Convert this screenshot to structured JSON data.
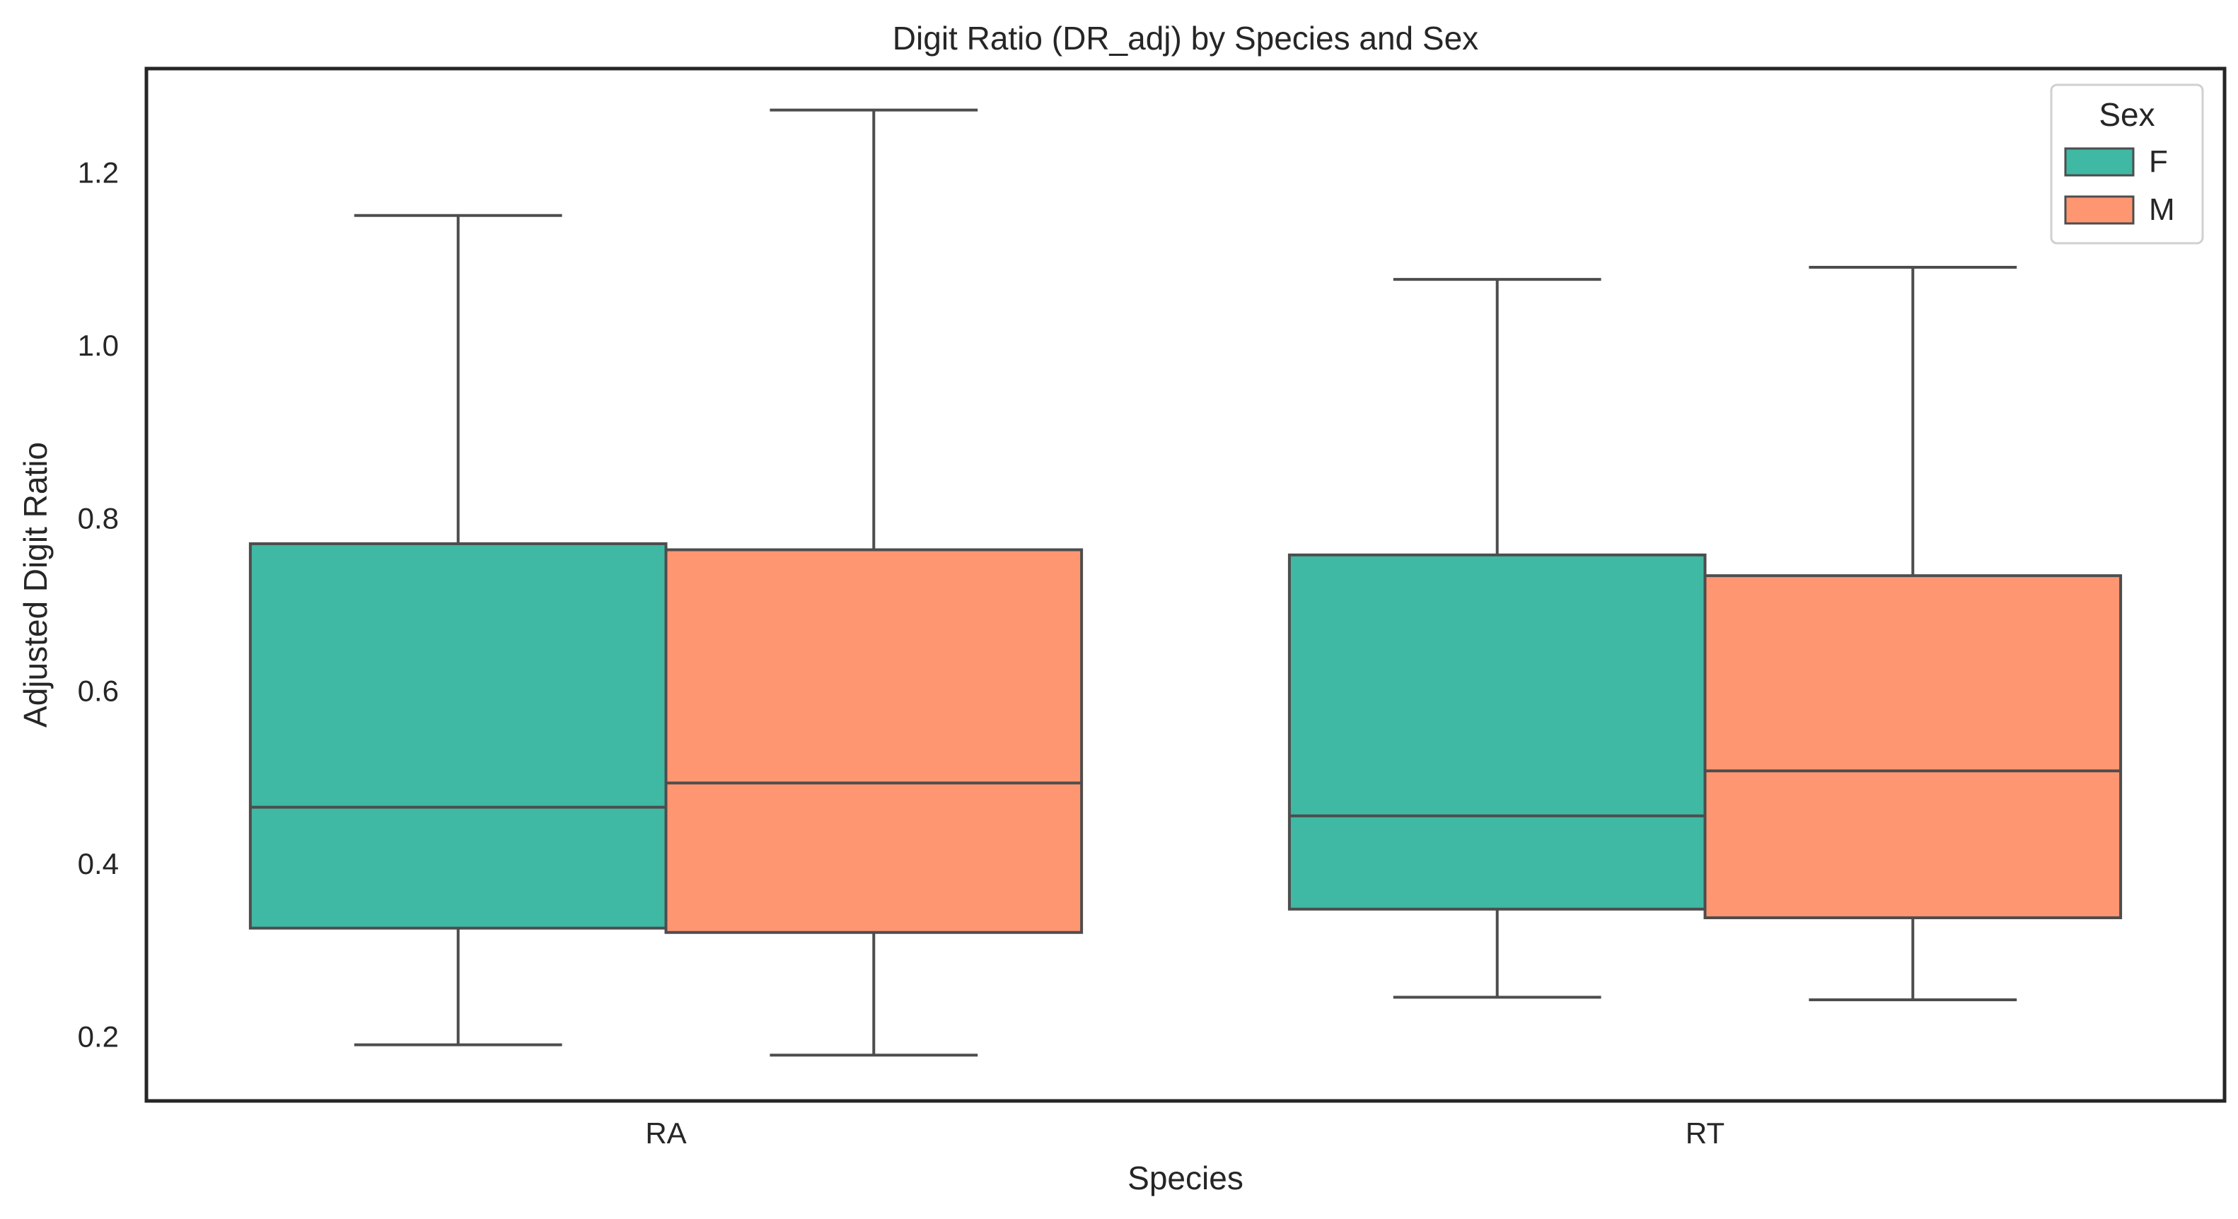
{
  "chart_data": {
    "type": "boxplot",
    "title": "Digit Ratio (DR_adj) by Species and Sex",
    "xlabel": "Species",
    "ylabel": "Adjusted Digit Ratio",
    "ylim": [
      0.125,
      1.32
    ],
    "yticks": [
      0.2,
      0.4,
      0.6,
      0.8,
      1.0,
      1.2
    ],
    "ytick_labels": [
      "0.2",
      "0.4",
      "0.6",
      "0.8",
      "1.0",
      "1.2"
    ],
    "categories": [
      "RA",
      "RT"
    ],
    "grid": false,
    "legend": {
      "title": "Sex",
      "position": "top-right"
    },
    "series": [
      {
        "name": "F",
        "color": "#3fb8a4",
        "boxes": [
          {
            "whisker_low": 0.19,
            "q1": 0.325,
            "median": 0.465,
            "q3": 0.77,
            "whisker_high": 1.15
          },
          {
            "whisker_low": 0.245,
            "q1": 0.347,
            "median": 0.455,
            "q3": 0.757,
            "whisker_high": 1.076
          }
        ]
      },
      {
        "name": "M",
        "color": "#fe9672",
        "boxes": [
          {
            "whisker_low": 0.178,
            "q1": 0.32,
            "median": 0.493,
            "q3": 0.763,
            "whisker_high": 1.272
          },
          {
            "whisker_low": 0.242,
            "q1": 0.337,
            "median": 0.507,
            "q3": 0.733,
            "whisker_high": 1.09
          }
        ]
      }
    ]
  }
}
